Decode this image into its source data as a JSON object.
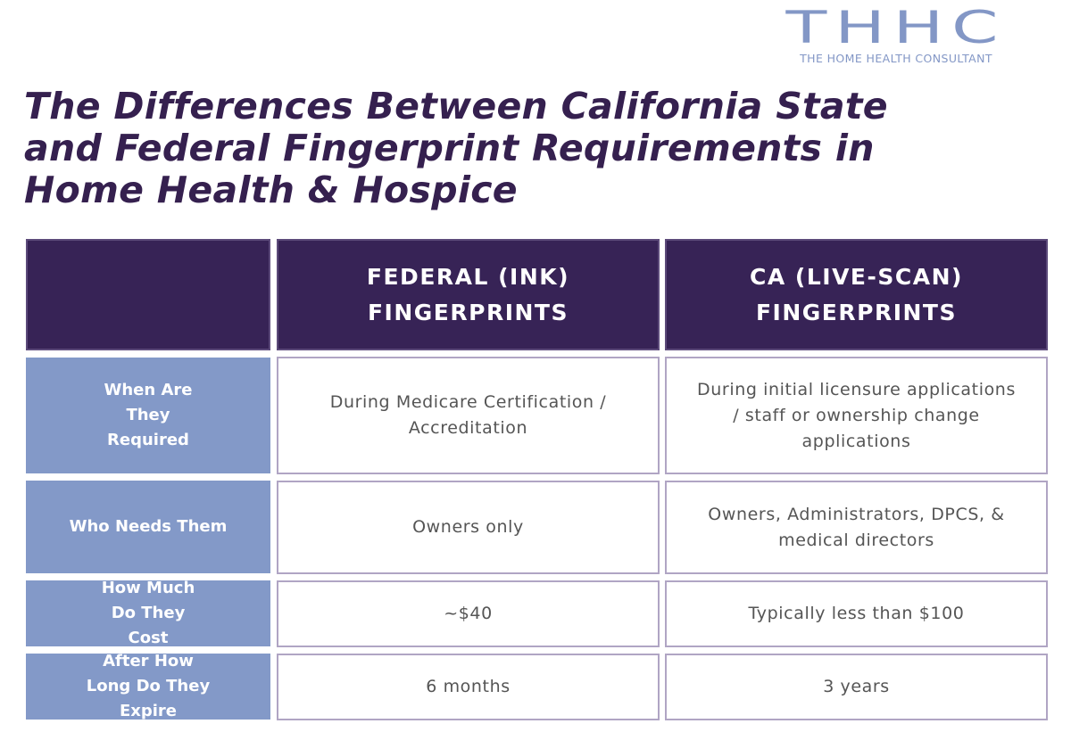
{
  "logo": {
    "mark": "THHC",
    "tagline": "THE HOME HEALTH CONSULTANT"
  },
  "title": "The Differences Between California State and Federal Fingerprint Requirements in Home Health & Hospice",
  "table": {
    "headers": [
      "",
      "FEDERAL (INK) FINGERPRINTS",
      "CA (LIVE-SCAN) FINGERPRINTS"
    ],
    "rows": [
      {
        "label": "When Are They Required",
        "federal": "During Medicare Certification / Accreditation",
        "ca": "During initial licensure applications / staff or ownership change applications"
      },
      {
        "label": "Who Needs Them",
        "federal": "Owners only",
        "ca": "Owners, Administrators, DPCS, & medical directors"
      },
      {
        "label": "How Much Do They Cost",
        "federal": "~$40",
        "ca": "Typically less than $100"
      },
      {
        "label": "After How Long Do They Expire",
        "federal": "6 months",
        "ca": "3 years"
      }
    ]
  },
  "colors": {
    "header": "#372356",
    "label": "#8399c8",
    "title": "#35204f",
    "logo": "#8397c6"
  }
}
